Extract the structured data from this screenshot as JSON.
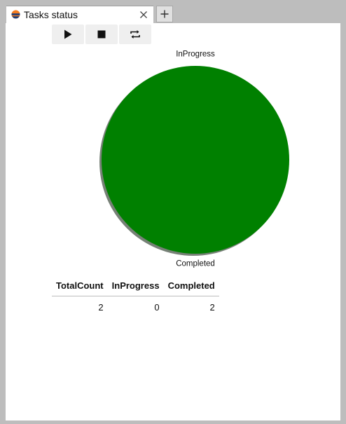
{
  "tab": {
    "title": "Tasks status",
    "icon": "app-logo-icon"
  },
  "toolbar": {
    "buttons": [
      {
        "name": "run-button",
        "icon": "play-icon"
      },
      {
        "name": "stop-button",
        "icon": "stop-icon"
      },
      {
        "name": "refresh-button",
        "icon": "repeat-icon"
      }
    ]
  },
  "chart_data": {
    "type": "pie",
    "categories": [
      "InProgress",
      "Completed"
    ],
    "values": [
      0,
      2
    ],
    "colors": [
      "#1f77b4",
      "#008000"
    ],
    "shadow": true
  },
  "table": {
    "columns": [
      "TotalCount",
      "InProgress",
      "Completed"
    ],
    "rows": [
      [
        "2",
        "0",
        "2"
      ]
    ]
  },
  "colors": {
    "window_frame": "#bdbdbd",
    "content_bg": "#ffffff",
    "completed_slice": "#008000"
  }
}
